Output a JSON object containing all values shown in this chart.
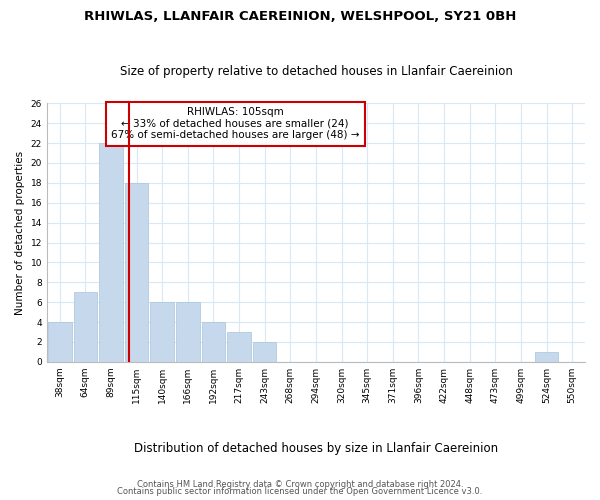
{
  "title": "RHIWLAS, LLANFAIR CAEREINION, WELSHPOOL, SY21 0BH",
  "subtitle": "Size of property relative to detached houses in Llanfair Caereinion",
  "xlabel": "Distribution of detached houses by size in Llanfair Caereinion",
  "ylabel": "Number of detached properties",
  "bar_labels": [
    "38sqm",
    "64sqm",
    "89sqm",
    "115sqm",
    "140sqm",
    "166sqm",
    "192sqm",
    "217sqm",
    "243sqm",
    "268sqm",
    "294sqm",
    "320sqm",
    "345sqm",
    "371sqm",
    "396sqm",
    "422sqm",
    "448sqm",
    "473sqm",
    "499sqm",
    "524sqm",
    "550sqm"
  ],
  "bar_values": [
    4,
    7,
    22,
    18,
    6,
    6,
    4,
    3,
    2,
    0,
    0,
    0,
    0,
    0,
    0,
    0,
    0,
    0,
    0,
    1,
    0
  ],
  "bar_color": "#c6d9ec",
  "bar_edge_color": "#a8c4dc",
  "grid_color": "#d8e8f4",
  "vline_color": "#cc0000",
  "vline_x": 2.72,
  "ylim": [
    0,
    26
  ],
  "yticks": [
    0,
    2,
    4,
    6,
    8,
    10,
    12,
    14,
    16,
    18,
    20,
    22,
    24,
    26
  ],
  "annotation_title": "RHIWLAS: 105sqm",
  "annotation_line1": "← 33% of detached houses are smaller (24)",
  "annotation_line2": "67% of semi-detached houses are larger (48) →",
  "annotation_box_color": "white",
  "annotation_box_edge": "#cc0000",
  "footnote1": "Contains HM Land Registry data © Crown copyright and database right 2024.",
  "footnote2": "Contains public sector information licensed under the Open Government Licence v3.0.",
  "title_fontsize": 9.5,
  "subtitle_fontsize": 8.5,
  "xlabel_fontsize": 8.5,
  "ylabel_fontsize": 7.5,
  "tick_fontsize": 6.5,
  "annotation_fontsize": 7.5,
  "footnote_fontsize": 6.0
}
